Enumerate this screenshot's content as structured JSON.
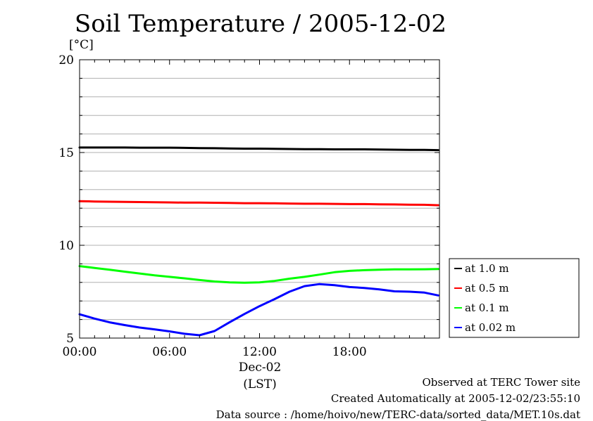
{
  "chart_data": {
    "type": "line",
    "title": "Soil Temperature / 2005-12-02",
    "ylabel": "[°C]",
    "xlabel": "(LST)",
    "x_date_label": "Dec-02",
    "ylim": [
      5,
      20
    ],
    "y_ticks": [
      "5",
      "10",
      "15",
      "20"
    ],
    "xlim": [
      "00:00",
      "24:00"
    ],
    "x_ticks": [
      "00:00",
      "06:00",
      "12:00",
      "18:00"
    ],
    "grid": true,
    "legend_position": "right",
    "x": [
      "00:00",
      "01:00",
      "02:00",
      "03:00",
      "04:00",
      "05:00",
      "06:00",
      "07:00",
      "08:00",
      "09:00",
      "10:00",
      "11:00",
      "12:00",
      "13:00",
      "14:00",
      "15:00",
      "16:00",
      "17:00",
      "18:00",
      "19:00",
      "20:00",
      "21:00",
      "22:00",
      "23:00",
      "23:55"
    ],
    "series": [
      {
        "name": "at 1.0 m",
        "color": "#000000",
        "values": [
          15.27,
          15.27,
          15.27,
          15.27,
          15.26,
          15.26,
          15.26,
          15.25,
          15.24,
          15.23,
          15.22,
          15.21,
          15.21,
          15.2,
          15.19,
          15.18,
          15.18,
          15.17,
          15.17,
          15.17,
          15.16,
          15.15,
          15.14,
          15.14,
          15.13
        ]
      },
      {
        "name": "at 0.5 m",
        "color": "#ff0000",
        "values": [
          12.38,
          12.36,
          12.35,
          12.34,
          12.33,
          12.32,
          12.31,
          12.3,
          12.3,
          12.29,
          12.28,
          12.27,
          12.27,
          12.26,
          12.25,
          12.24,
          12.24,
          12.23,
          12.22,
          12.22,
          12.21,
          12.2,
          12.19,
          12.18,
          12.16
        ]
      },
      {
        "name": "at 0.1 m",
        "color": "#00ff00",
        "values": [
          8.88,
          8.78,
          8.68,
          8.58,
          8.48,
          8.38,
          8.3,
          8.22,
          8.13,
          8.05,
          8.0,
          7.98,
          8.0,
          8.08,
          8.2,
          8.3,
          8.42,
          8.55,
          8.62,
          8.66,
          8.68,
          8.7,
          8.7,
          8.71,
          8.72
        ]
      },
      {
        "name": "at 0.02 m",
        "color": "#0000ff",
        "values": [
          6.28,
          6.05,
          5.85,
          5.7,
          5.57,
          5.47,
          5.36,
          5.23,
          5.15,
          5.38,
          5.85,
          6.3,
          6.72,
          7.1,
          7.5,
          7.8,
          7.91,
          7.85,
          7.75,
          7.7,
          7.62,
          7.52,
          7.5,
          7.45,
          7.3
        ]
      }
    ]
  },
  "footer": {
    "line1": "Observed at TERC Tower site",
    "line2": "Created Automatically at 2005-12-02/23:55:10",
    "line3": "Data source : /home/hoivo/new/TERC-data/sorted_data/MET.10s.dat"
  }
}
